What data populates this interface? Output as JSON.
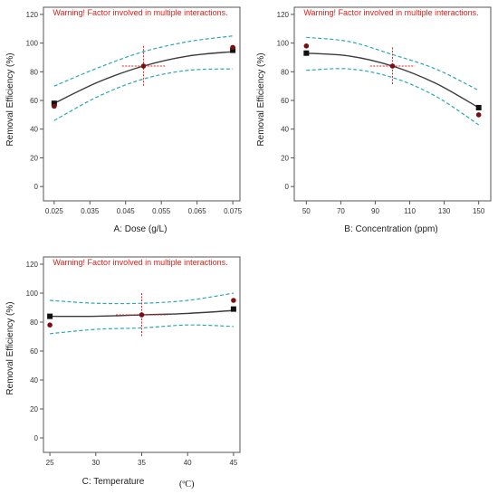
{
  "chart_data": [
    {
      "type": "line",
      "panel": "A",
      "warning": "Warning! Factor involved in multiple interactions.",
      "xlabel": "A: Dose (g/L)",
      "ylabel": "Removal Efficiency (%)",
      "xlim": [
        0.022,
        0.077
      ],
      "ylim": [
        -10,
        125
      ],
      "xticks": [
        "0.025",
        "0.035",
        "0.045",
        "0.055",
        "0.065",
        "0.075"
      ],
      "xtick_values": [
        0.025,
        0.035,
        0.045,
        0.055,
        0.065,
        0.075
      ],
      "yticks": [
        "0",
        "20",
        "40",
        "60",
        "80",
        "100",
        "120"
      ],
      "ytick_values": [
        0,
        20,
        40,
        60,
        80,
        100,
        120
      ],
      "series": [
        {
          "role": "fit",
          "x": [
            0.025,
            0.0375,
            0.05,
            0.0625,
            0.075
          ],
          "values": [
            58,
            73,
            84,
            91,
            94
          ]
        },
        {
          "role": "ci-upper",
          "x": [
            0.025,
            0.0375,
            0.05,
            0.0625,
            0.075
          ],
          "values": [
            70,
            83,
            94,
            101,
            105
          ]
        },
        {
          "role": "ci-lower",
          "x": [
            0.025,
            0.0375,
            0.05,
            0.0625,
            0.075
          ],
          "values": [
            46,
            63,
            75,
            81,
            82
          ]
        }
      ],
      "design_points": [
        {
          "x": 0.025,
          "y": 58,
          "marker": "square"
        },
        {
          "x": 0.025,
          "y": 56,
          "marker": "circle"
        },
        {
          "x": 0.075,
          "y": 95,
          "marker": "square"
        },
        {
          "x": 0.075,
          "y": 97,
          "marker": "circle"
        },
        {
          "x": 0.05,
          "y": 84,
          "marker": "circle"
        }
      ],
      "center": {
        "x": 0.05,
        "y": 84,
        "x_half": 0.006,
        "y_half": 14
      },
      "colors": {
        "fit": "#3a3a3a",
        "ci": "#2aa8b8",
        "center": "#e02020",
        "points": "#7a0f0f"
      }
    },
    {
      "type": "line",
      "panel": "B",
      "warning": "Warning! Factor involved in multiple interactions.",
      "xlabel": "B: Concentration (ppm)",
      "ylabel": "Removal Efficiency (%)",
      "xlim": [
        43,
        157
      ],
      "ylim": [
        -10,
        125
      ],
      "xticks": [
        "50",
        "70",
        "90",
        "110",
        "130",
        "150"
      ],
      "xtick_values": [
        50,
        70,
        90,
        110,
        130,
        150
      ],
      "yticks": [
        "0",
        "20",
        "40",
        "60",
        "80",
        "100",
        "120"
      ],
      "ytick_values": [
        0,
        20,
        40,
        60,
        80,
        100,
        120
      ],
      "series": [
        {
          "role": "fit",
          "x": [
            50,
            75,
            100,
            125,
            150
          ],
          "values": [
            93,
            91,
            84,
            72,
            55
          ]
        },
        {
          "role": "ci-upper",
          "x": [
            50,
            75,
            100,
            125,
            150
          ],
          "values": [
            104,
            101,
            92,
            82,
            67
          ]
        },
        {
          "role": "ci-lower",
          "x": [
            50,
            75,
            100,
            125,
            150
          ],
          "values": [
            81,
            82,
            76,
            63,
            43
          ]
        }
      ],
      "design_points": [
        {
          "x": 50,
          "y": 93,
          "marker": "square"
        },
        {
          "x": 50,
          "y": 98,
          "marker": "circle"
        },
        {
          "x": 150,
          "y": 55,
          "marker": "square"
        },
        {
          "x": 150,
          "y": 50,
          "marker": "circle"
        },
        {
          "x": 100,
          "y": 84,
          "marker": "circle"
        }
      ],
      "center": {
        "x": 100,
        "y": 84,
        "x_half": 13,
        "y_half": 13
      },
      "colors": {
        "fit": "#3a3a3a",
        "ci": "#2aa8b8",
        "center": "#e02020",
        "points": "#7a0f0f"
      }
    },
    {
      "type": "line",
      "panel": "C",
      "warning": "Warning! Factor involved in multiple interactions.",
      "xlabel": "C: Temperature",
      "unit_note": "(ºC)",
      "ylabel": "Removal Efficiency (%)",
      "xlim": [
        24.3,
        45.7
      ],
      "ylim": [
        -10,
        125
      ],
      "xticks": [
        "25",
        "30",
        "35",
        "40",
        "45"
      ],
      "xtick_values": [
        25,
        30,
        35,
        40,
        45
      ],
      "yticks": [
        "0",
        "20",
        "40",
        "60",
        "80",
        "100",
        "120"
      ],
      "ytick_values": [
        0,
        20,
        40,
        60,
        80,
        100,
        120
      ],
      "series": [
        {
          "role": "fit",
          "x": [
            25,
            30,
            35,
            40,
            45
          ],
          "values": [
            84,
            84,
            85,
            86,
            88
          ]
        },
        {
          "role": "ci-upper",
          "x": [
            25,
            30,
            35,
            40,
            45
          ],
          "values": [
            95,
            93,
            93,
            95,
            100
          ]
        },
        {
          "role": "ci-lower",
          "x": [
            25,
            30,
            35,
            40,
            45
          ],
          "values": [
            72,
            75,
            76,
            78,
            77
          ]
        }
      ],
      "design_points": [
        {
          "x": 25,
          "y": 84,
          "marker": "square"
        },
        {
          "x": 25,
          "y": 78,
          "marker": "circle"
        },
        {
          "x": 45,
          "y": 89,
          "marker": "square"
        },
        {
          "x": 45,
          "y": 95,
          "marker": "circle"
        },
        {
          "x": 35,
          "y": 85,
          "marker": "circle"
        }
      ],
      "center": {
        "x": 35,
        "y": 85,
        "x_half": 2.8,
        "y_half": 15
      },
      "colors": {
        "fit": "#3a3a3a",
        "ci": "#2aa8b8",
        "center": "#e02020",
        "points": "#7a0f0f"
      }
    }
  ]
}
